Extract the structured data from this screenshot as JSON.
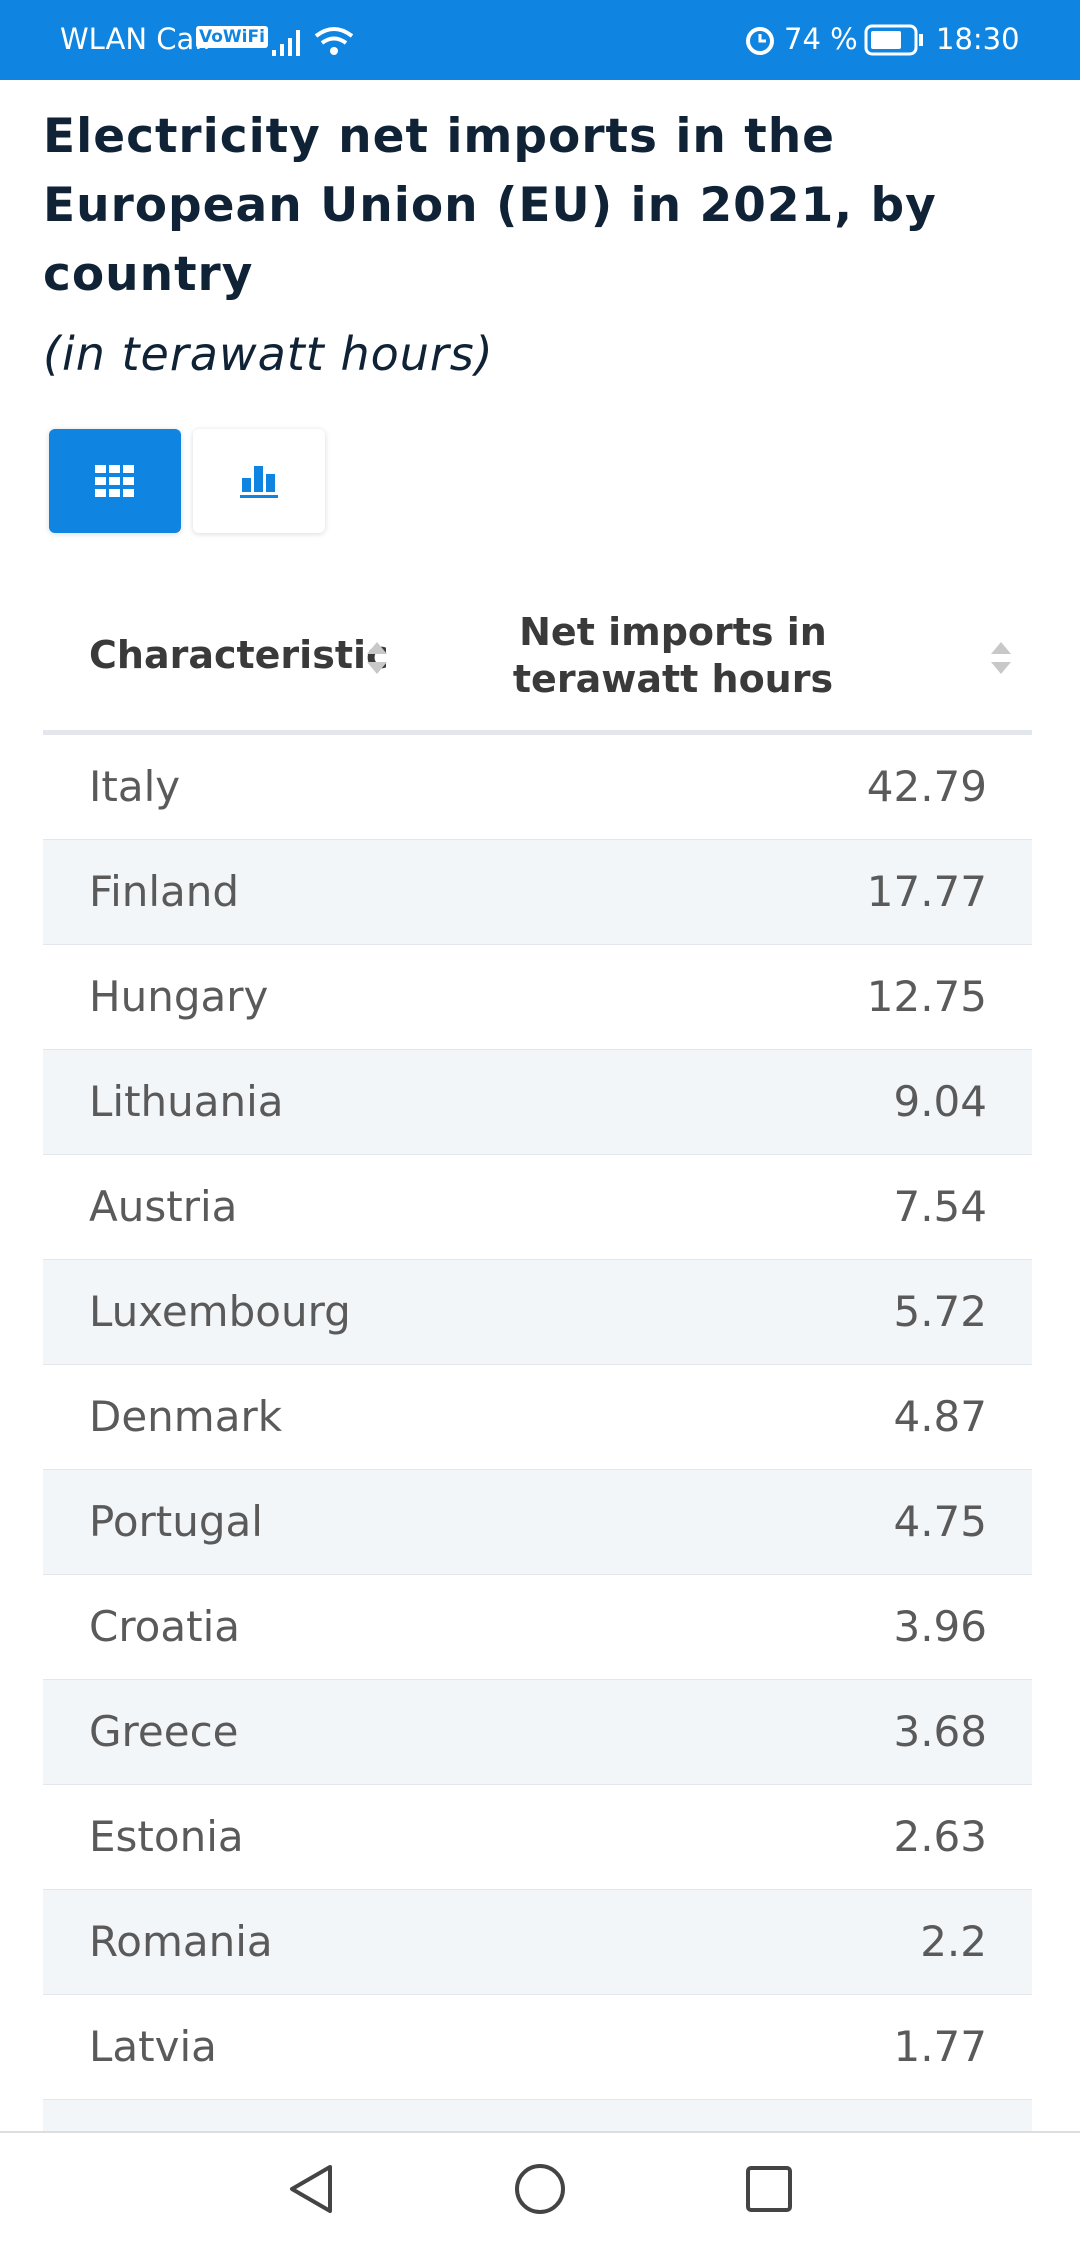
{
  "status_bar": {
    "carrier": "WLAN Call",
    "wifi_badge": "VoWiFi",
    "battery": "74 %",
    "time": "18:30"
  },
  "header": {
    "title": "Electricity net imports in the European Union (EU) in 2021, by country",
    "subtitle": "(in terawatt hours)"
  },
  "table": {
    "columns": [
      "Characteristic",
      "Net imports in terawatt hours"
    ],
    "rows": [
      [
        "Italy",
        42.79
      ],
      [
        "Finland",
        17.77
      ],
      [
        "Hungary",
        12.75
      ],
      [
        "Lithuania",
        9.04
      ],
      [
        "Austria",
        7.54
      ],
      [
        "Luxembourg",
        5.72
      ],
      [
        "Denmark",
        4.87
      ],
      [
        "Portugal",
        4.75
      ],
      [
        "Croatia",
        3.96
      ],
      [
        "Greece",
        3.68
      ],
      [
        "Estonia",
        2.63
      ],
      [
        "Romania",
        2.2
      ],
      [
        "Latvia",
        1.77
      ]
    ]
  }
}
